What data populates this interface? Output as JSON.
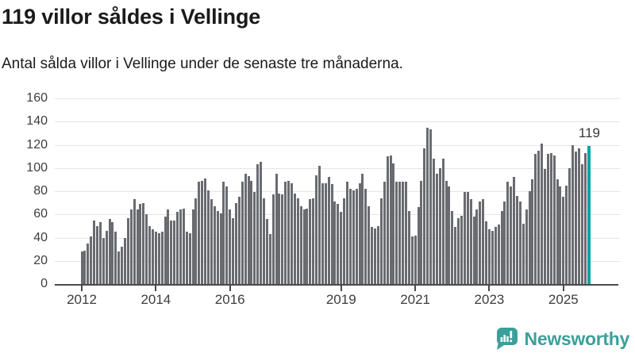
{
  "header": {
    "title": "119 villor såldes i Vellinge",
    "subtitle": "Antal sålda villor i Vellinge under de senaste tre månaderna."
  },
  "chart_data": {
    "type": "bar",
    "frequency": "monthly",
    "x_start": "2012-01",
    "x_end": "2025-09",
    "ylabel": "",
    "xlabel": "",
    "ylim": [
      0,
      170
    ],
    "grid": true,
    "bar_color": "#696b70",
    "highlight_color": "#00a4a4",
    "y_ticks": [
      0,
      20,
      40,
      60,
      80,
      100,
      120,
      140,
      160
    ],
    "x_ticks": [
      {
        "label": "2012",
        "month_index": 0
      },
      {
        "label": "2014",
        "month_index": 24
      },
      {
        "label": "2016",
        "month_index": 48
      },
      {
        "label": "2019",
        "month_index": 84
      },
      {
        "label": "2021",
        "month_index": 108
      },
      {
        "label": "2023",
        "month_index": 132
      },
      {
        "label": "2025",
        "month_index": 156
      }
    ],
    "values": [
      28,
      29,
      35,
      41,
      55,
      50,
      53,
      40,
      46,
      56,
      53,
      45,
      28,
      32,
      40,
      57,
      64,
      73,
      64,
      69,
      70,
      60,
      50,
      47,
      45,
      44,
      45,
      58,
      64,
      55,
      55,
      62,
      64,
      65,
      45,
      44,
      64,
      74,
      88,
      89,
      91,
      81,
      73,
      67,
      63,
      61,
      88,
      84,
      64,
      57,
      70,
      75,
      88,
      95,
      93,
      89,
      79,
      103,
      105,
      74,
      56,
      43,
      77,
      95,
      78,
      77,
      88,
      89,
      87,
      78,
      74,
      67,
      64,
      65,
      73,
      74,
      94,
      102,
      87,
      87,
      92,
      86,
      71,
      69,
      62,
      74,
      88,
      82,
      81,
      82,
      87,
      95,
      82,
      67,
      49,
      48,
      50,
      74,
      88,
      110,
      111,
      104,
      88,
      88,
      88,
      88,
      63,
      41,
      42,
      66,
      89,
      117,
      135,
      133,
      108,
      95,
      100,
      108,
      89,
      84,
      63,
      49,
      57,
      59,
      79,
      79,
      73,
      58,
      64,
      71,
      73,
      54,
      47,
      46,
      49,
      51,
      63,
      71,
      88,
      84,
      92,
      76,
      71,
      52,
      64,
      80,
      90,
      112,
      115,
      121,
      99,
      112,
      113,
      111,
      90,
      84,
      75,
      85,
      100,
      120,
      114,
      117,
      103,
      113,
      119
    ],
    "highlight": {
      "index": 164,
      "value": 119,
      "label": "119"
    }
  },
  "footer": {
    "brand": "Newsworthy",
    "brand_color": "#3ba09b"
  }
}
